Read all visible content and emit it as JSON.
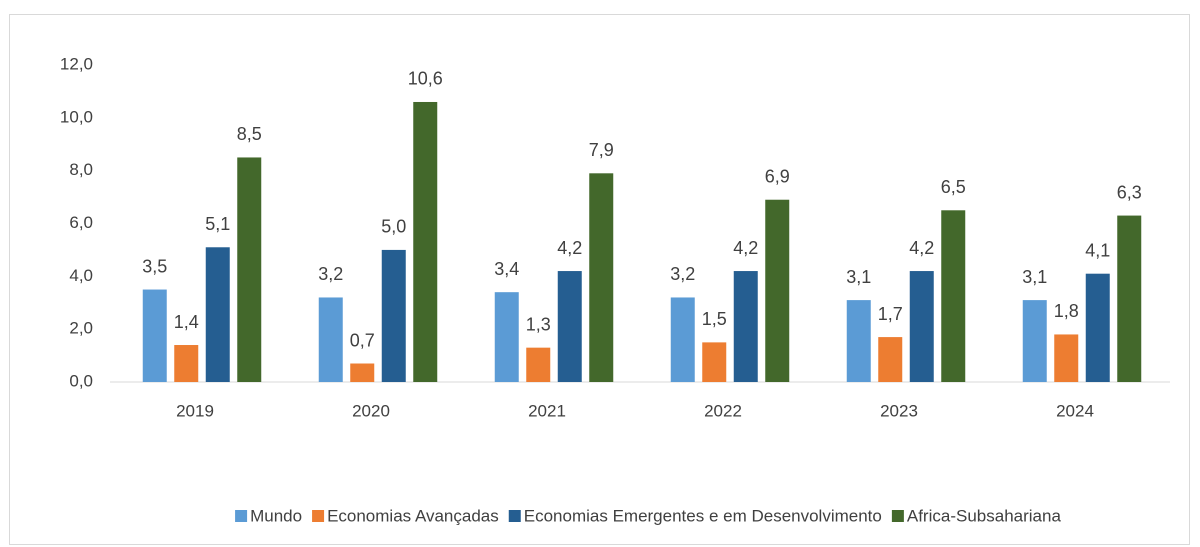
{
  "chart_data": {
    "type": "bar",
    "categories": [
      "2019",
      "2020",
      "2021",
      "2022",
      "2023",
      "2024"
    ],
    "series": [
      {
        "name": "Mundo",
        "color": "#5b9bd5",
        "values": [
          3.5,
          3.2,
          3.4,
          3.2,
          3.1,
          3.1
        ],
        "value_labels": [
          "3,5",
          "3,2",
          "3,4",
          "3,2",
          "3,1",
          "3,1"
        ]
      },
      {
        "name": "Economias Avançadas",
        "color": "#ed7d31",
        "values": [
          1.4,
          0.7,
          1.3,
          1.5,
          1.7,
          1.8
        ],
        "value_labels": [
          "1,4",
          "0,7",
          "1,3",
          "1,5",
          "1,7",
          "1,8"
        ]
      },
      {
        "name": "Economias Emergentes e em Desenvolvimento",
        "color": "#255e91",
        "values": [
          5.1,
          5.0,
          4.2,
          4.2,
          4.2,
          4.1
        ],
        "value_labels": [
          "5,1",
          "5,0",
          "4,2",
          "4,2",
          "4,2",
          "4,1"
        ]
      },
      {
        "name": "Africa-Subsahariana",
        "color": "#43682b",
        "values": [
          8.5,
          10.6,
          7.9,
          6.9,
          6.5,
          6.3
        ],
        "value_labels": [
          "8,5",
          "10,6",
          "7,9",
          "6,9",
          "6,5",
          "6,3"
        ]
      }
    ],
    "ylim": [
      0,
      12
    ],
    "yticks": [
      {
        "value": 0,
        "label": "0,0"
      },
      {
        "value": 2,
        "label": "2,0"
      },
      {
        "value": 4,
        "label": "4,0"
      },
      {
        "value": 6,
        "label": "6,0"
      },
      {
        "value": 8,
        "label": "8,0"
      },
      {
        "value": 10,
        "label": "10,0"
      },
      {
        "value": 12,
        "label": "12,0"
      }
    ],
    "grid": false,
    "legend": "bottom"
  }
}
